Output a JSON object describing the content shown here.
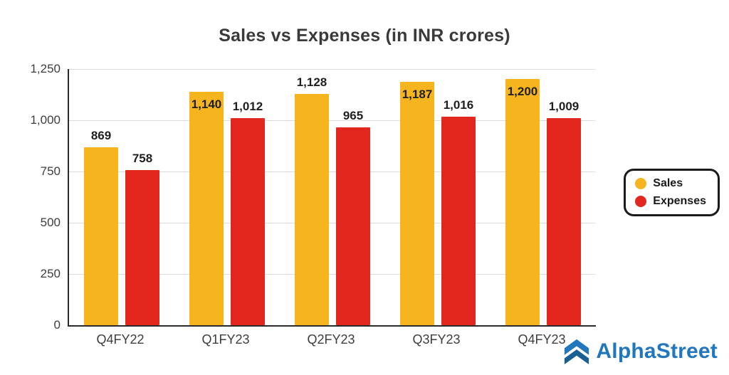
{
  "chart_data": {
    "type": "bar",
    "title": "Sales vs Expenses (in INR crores)",
    "categories": [
      "Q4FY22",
      "Q1FY23",
      "Q2FY23",
      "Q3FY23",
      "Q4FY23"
    ],
    "series": [
      {
        "name": "Sales",
        "color": "#F6B51E",
        "values": [
          869,
          1140,
          1128,
          1187,
          1200
        ]
      },
      {
        "name": "Expenses",
        "color": "#E2271F",
        "values": [
          758,
          1012,
          965,
          1016,
          1009
        ]
      }
    ],
    "ylim": [
      0,
      1250
    ],
    "yticks": [
      0,
      250,
      500,
      750,
      1000,
      1250
    ],
    "grid": true,
    "legend_position": "right",
    "value_labels": true
  },
  "branding": {
    "logo_text": "AlphaStreet",
    "brand_color": "#2077BD",
    "logo_dark_color": "#185F93"
  }
}
